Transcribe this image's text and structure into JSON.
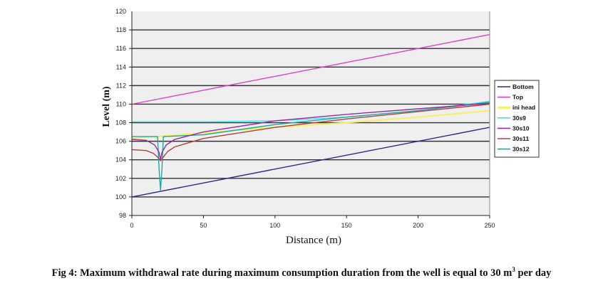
{
  "chart_data": {
    "type": "line",
    "title": "",
    "xlabel": "Distance (m)",
    "ylabel": "Level (m)",
    "xlim": [
      0,
      250
    ],
    "ylim": [
      98,
      120
    ],
    "xticks": [
      0,
      50,
      100,
      150,
      200,
      250
    ],
    "yticks": [
      98,
      100,
      102,
      104,
      106,
      108,
      110,
      112,
      114,
      116,
      118
    ],
    "grid": "horizontal",
    "legend_position": "right",
    "series": [
      {
        "name": "Bottom",
        "color": "#2a2a8a",
        "x": [
          0,
          250
        ],
        "y": [
          100,
          107.5
        ]
      },
      {
        "name": "Top",
        "color": "#e040c8",
        "x": [
          0,
          250
        ],
        "y": [
          110,
          117.5
        ]
      },
      {
        "name": "ini head",
        "color": "#f5ef60",
        "x": [
          0,
          50,
          100,
          150,
          200,
          250
        ],
        "y": [
          106.3,
          106.9,
          107.5,
          108.0,
          108.6,
          109.3
        ]
      },
      {
        "name": "30s9",
        "color": "#40e0e8",
        "x": [
          0,
          50,
          100,
          150,
          200,
          250
        ],
        "y": [
          108.1,
          108.1,
          108.2,
          108.6,
          109.3,
          110.3
        ]
      },
      {
        "name": "30s10",
        "color": "#9a2aa0",
        "x": [
          0,
          10,
          16,
          19,
          20,
          21,
          24,
          30,
          50,
          100,
          150,
          200,
          250
        ],
        "y": [
          106.2,
          106.1,
          105.6,
          104.8,
          104.0,
          104.8,
          105.6,
          106.2,
          107.0,
          108.2,
          108.9,
          109.5,
          110.1
        ]
      },
      {
        "name": "30s11",
        "color": "#b04040",
        "x": [
          0,
          10,
          15,
          18,
          20,
          22,
          25,
          30,
          50,
          100,
          150,
          200,
          250
        ],
        "y": [
          105.1,
          105.0,
          104.7,
          104.3,
          103.9,
          104.3,
          104.9,
          105.4,
          106.3,
          107.5,
          108.4,
          109.2,
          110.0
        ]
      },
      {
        "name": "30s12",
        "color": "#20a8a0",
        "x": [
          0,
          18,
          19,
          20,
          21,
          22,
          50,
          100,
          150,
          200,
          250
        ],
        "y": [
          106.5,
          106.5,
          103.0,
          100.7,
          103.0,
          106.5,
          106.7,
          107.8,
          108.6,
          109.3,
          110.2
        ]
      }
    ]
  },
  "caption": {
    "text": "Fig 4: Maximum withdrawal rate during maximum consumption duration from the well is equal to 30 m",
    "superscript": "3",
    "suffix": " per day"
  }
}
